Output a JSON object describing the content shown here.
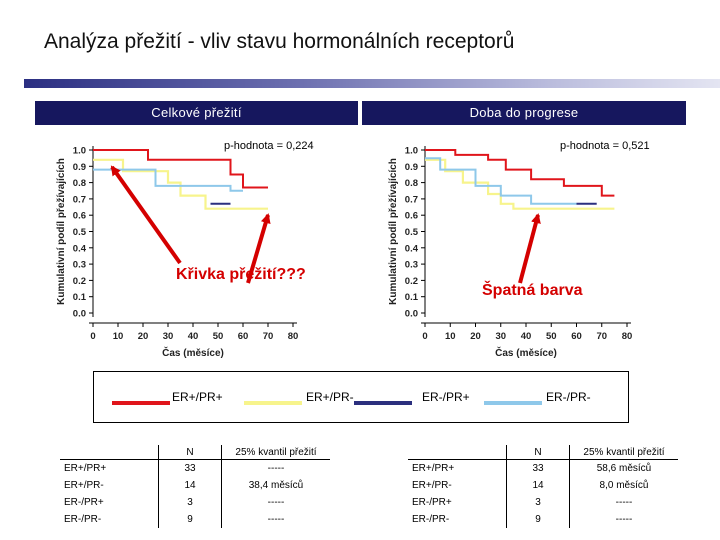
{
  "title": "Analýza přežití - vliv stavu hormonálních receptorů",
  "sections": {
    "overall_survival": "Celkové přežití",
    "time_to_progression": "Doba do progrese"
  },
  "annotations": {
    "curve": "Křivka přežití???",
    "color": "Špatná barva"
  },
  "colors": {
    "er_pos_pr_pos": "#e0151b",
    "er_pos_pr_neg": "#f7f48c",
    "er_neg_pr_pos": "#2b2f7e",
    "er_neg_pr_neg": "#8ec8ea",
    "arrow": "#d40000",
    "section_bar": "#16175e"
  },
  "legend": [
    {
      "label": "ER+/PR+",
      "color": "#e0151b"
    },
    {
      "label": "ER+/PR-",
      "color": "#f7f48c"
    },
    {
      "label": "ER-/PR+",
      "color": "#2b2f7e"
    },
    {
      "label": "ER-/PR-",
      "color": "#8ec8ea"
    }
  ],
  "chart_data": [
    {
      "type": "line",
      "title": "Celkové přežití",
      "subtitle": "p-hodnota = 0,224",
      "xlabel": "Čas (měsíce)",
      "ylabel": "Kumulativní podíl přežívajících",
      "xlim": [
        0,
        80
      ],
      "ylim": [
        0.0,
        1.0
      ],
      "x_ticks": [
        "0",
        "10",
        "20",
        "30",
        "40",
        "50",
        "60",
        "70",
        "80"
      ],
      "y_ticks": [
        "0.0",
        "0.1",
        "0.2",
        "0.3",
        "0.4",
        "0.5",
        "0.6",
        "0.7",
        "0.8",
        "0.9",
        "1.0"
      ],
      "series": [
        {
          "name": "ER+/PR+",
          "color": "#e0151b",
          "x": [
            0,
            22,
            22,
            55,
            55,
            60,
            60,
            70
          ],
          "y": [
            1.0,
            1.0,
            0.94,
            0.94,
            0.85,
            0.85,
            0.77,
            0.77
          ]
        },
        {
          "name": "ER+/PR-",
          "color": "#f7f48c",
          "x": [
            0,
            12,
            12,
            30,
            30,
            35,
            35,
            45,
            45,
            70
          ],
          "y": [
            0.94,
            0.94,
            0.87,
            0.87,
            0.8,
            0.8,
            0.72,
            0.72,
            0.64,
            0.64
          ]
        },
        {
          "name": "ER-/PR+",
          "color": "#2b2f7e",
          "x": [
            47,
            55
          ],
          "y": [
            0.67,
            0.67
          ]
        },
        {
          "name": "ER-/PR-",
          "color": "#8ec8ea",
          "x": [
            0,
            25,
            25,
            55,
            55,
            60
          ],
          "y": [
            0.88,
            0.88,
            0.78,
            0.78,
            0.75,
            0.75
          ]
        }
      ]
    },
    {
      "type": "line",
      "title": "Doba do progrese",
      "subtitle": "p-hodnota = 0,521",
      "xlabel": "Čas (měsíce)",
      "ylabel": "Kumulativní podíl přežívajících",
      "xlim": [
        0,
        80
      ],
      "ylim": [
        0.0,
        1.0
      ],
      "x_ticks": [
        "0",
        "10",
        "20",
        "30",
        "40",
        "50",
        "60",
        "70",
        "80"
      ],
      "y_ticks": [
        "0.0",
        "0.1",
        "0.2",
        "0.3",
        "0.4",
        "0.5",
        "0.6",
        "0.7",
        "0.8",
        "0.9",
        "1.0"
      ],
      "series": [
        {
          "name": "ER+/PR+",
          "color": "#e0151b",
          "x": [
            0,
            12,
            12,
            25,
            25,
            32,
            32,
            42,
            42,
            55,
            55,
            70,
            70,
            75
          ],
          "y": [
            1.0,
            1.0,
            0.97,
            0.97,
            0.94,
            0.94,
            0.88,
            0.88,
            0.82,
            0.82,
            0.78,
            0.78,
            0.72,
            0.72
          ]
        },
        {
          "name": "ER+/PR-",
          "color": "#f7f48c",
          "x": [
            0,
            8,
            8,
            15,
            15,
            25,
            25,
            30,
            30,
            35,
            35,
            42,
            42,
            75
          ],
          "y": [
            0.94,
            0.94,
            0.87,
            0.87,
            0.8,
            0.8,
            0.73,
            0.73,
            0.67,
            0.67,
            0.64,
            0.64,
            0.64,
            0.64
          ]
        },
        {
          "name": "ER-/PR+",
          "color": "#2b2f7e",
          "x": [
            60,
            68
          ],
          "y": [
            0.67,
            0.67
          ]
        },
        {
          "name": "ER-/PR-",
          "color": "#8ec8ea",
          "x": [
            0,
            6,
            6,
            20,
            20,
            30,
            30,
            42,
            42,
            60
          ],
          "y": [
            0.95,
            0.95,
            0.88,
            0.88,
            0.78,
            0.78,
            0.72,
            0.72,
            0.67,
            0.67
          ]
        }
      ]
    }
  ],
  "tables": {
    "left": {
      "headers": [
        "",
        "N",
        "25% kvantil přežití"
      ],
      "rows": [
        [
          "ER+/PR+",
          "33",
          "-----"
        ],
        [
          "ER+/PR-",
          "14",
          "38,4 měsíců"
        ],
        [
          "ER-/PR+",
          "3",
          "-----"
        ],
        [
          "ER-/PR-",
          "9",
          "-----"
        ]
      ]
    },
    "right": {
      "headers": [
        "",
        "N",
        "25% kvantil přežití"
      ],
      "rows": [
        [
          "ER+/PR+",
          "33",
          "58,6 měsíců"
        ],
        [
          "ER+/PR-",
          "14",
          "8,0 měsíců"
        ],
        [
          "ER-/PR+",
          "3",
          "-----"
        ],
        [
          "ER-/PR-",
          "9",
          "-----"
        ]
      ]
    }
  }
}
